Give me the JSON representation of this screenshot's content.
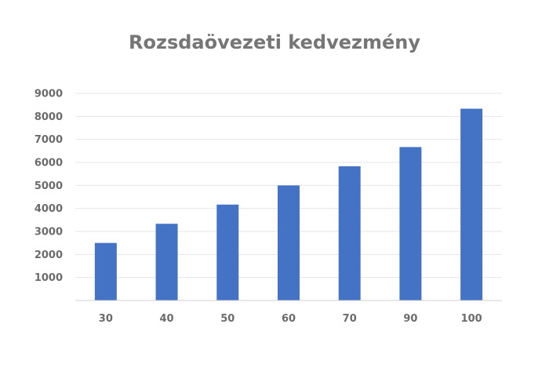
{
  "chart_data": {
    "type": "bar",
    "title": "Rozsdaövezeti kedvezmény",
    "categories": [
      "30",
      "40",
      "50",
      "60",
      "70",
      "90",
      "100"
    ],
    "values": [
      2500,
      3333,
      4167,
      5000,
      5833,
      6667,
      8333
    ],
    "xlabel": "",
    "ylabel": "",
    "ylim": [
      0,
      9000
    ],
    "yticks": [
      1000,
      2000,
      3000,
      4000,
      5000,
      6000,
      7000,
      8000,
      9000
    ],
    "grid": true,
    "legend": "none",
    "bar_color": "#4472C4",
    "grid_color": "#e6e6e6",
    "axis_color": "#d0d0d0"
  }
}
